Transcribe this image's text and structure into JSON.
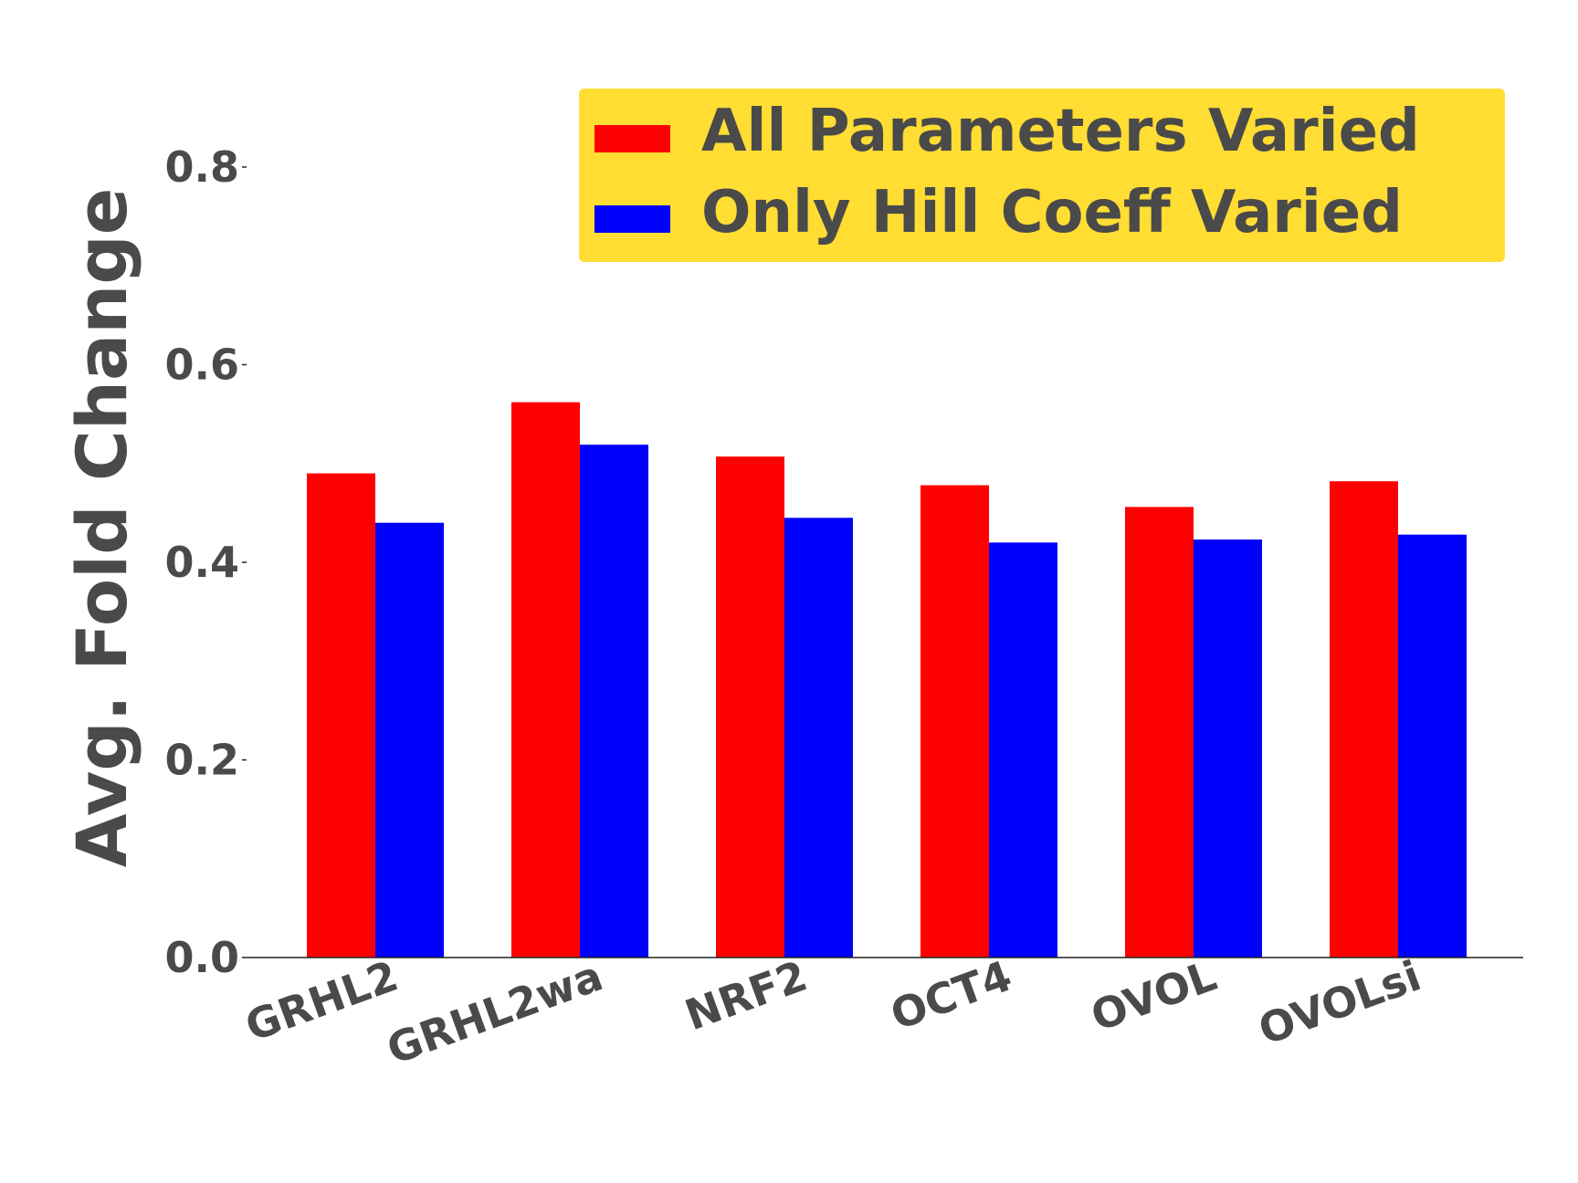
{
  "chart_data": {
    "type": "bar",
    "categories": [
      "GRHL2",
      "GRHL2wa",
      "NRF2",
      "OCT4",
      "OVOL",
      "OVOLsi"
    ],
    "series": [
      {
        "name": "All Parameters Varied",
        "color": "#ff0000",
        "values": [
          0.49,
          0.562,
          0.507,
          0.478,
          0.456,
          0.482
        ]
      },
      {
        "name": "Only Hill Coeff Varied",
        "color": "#0000ff",
        "values": [
          0.44,
          0.519,
          0.445,
          0.42,
          0.423,
          0.428
        ]
      }
    ],
    "ylabel": "Avg. Fold Change",
    "xlabel": "",
    "ylim": [
      0,
      0.9
    ],
    "yticks": [
      0.0,
      0.2,
      0.4,
      0.6,
      0.8
    ],
    "ytick_labels": [
      "0.0",
      "0.2",
      "0.4",
      "0.6",
      "0.8"
    ],
    "grid": false,
    "legend_position": "top-right",
    "legend_background": "#ffdd33",
    "text_color": "#4a4a4a"
  }
}
